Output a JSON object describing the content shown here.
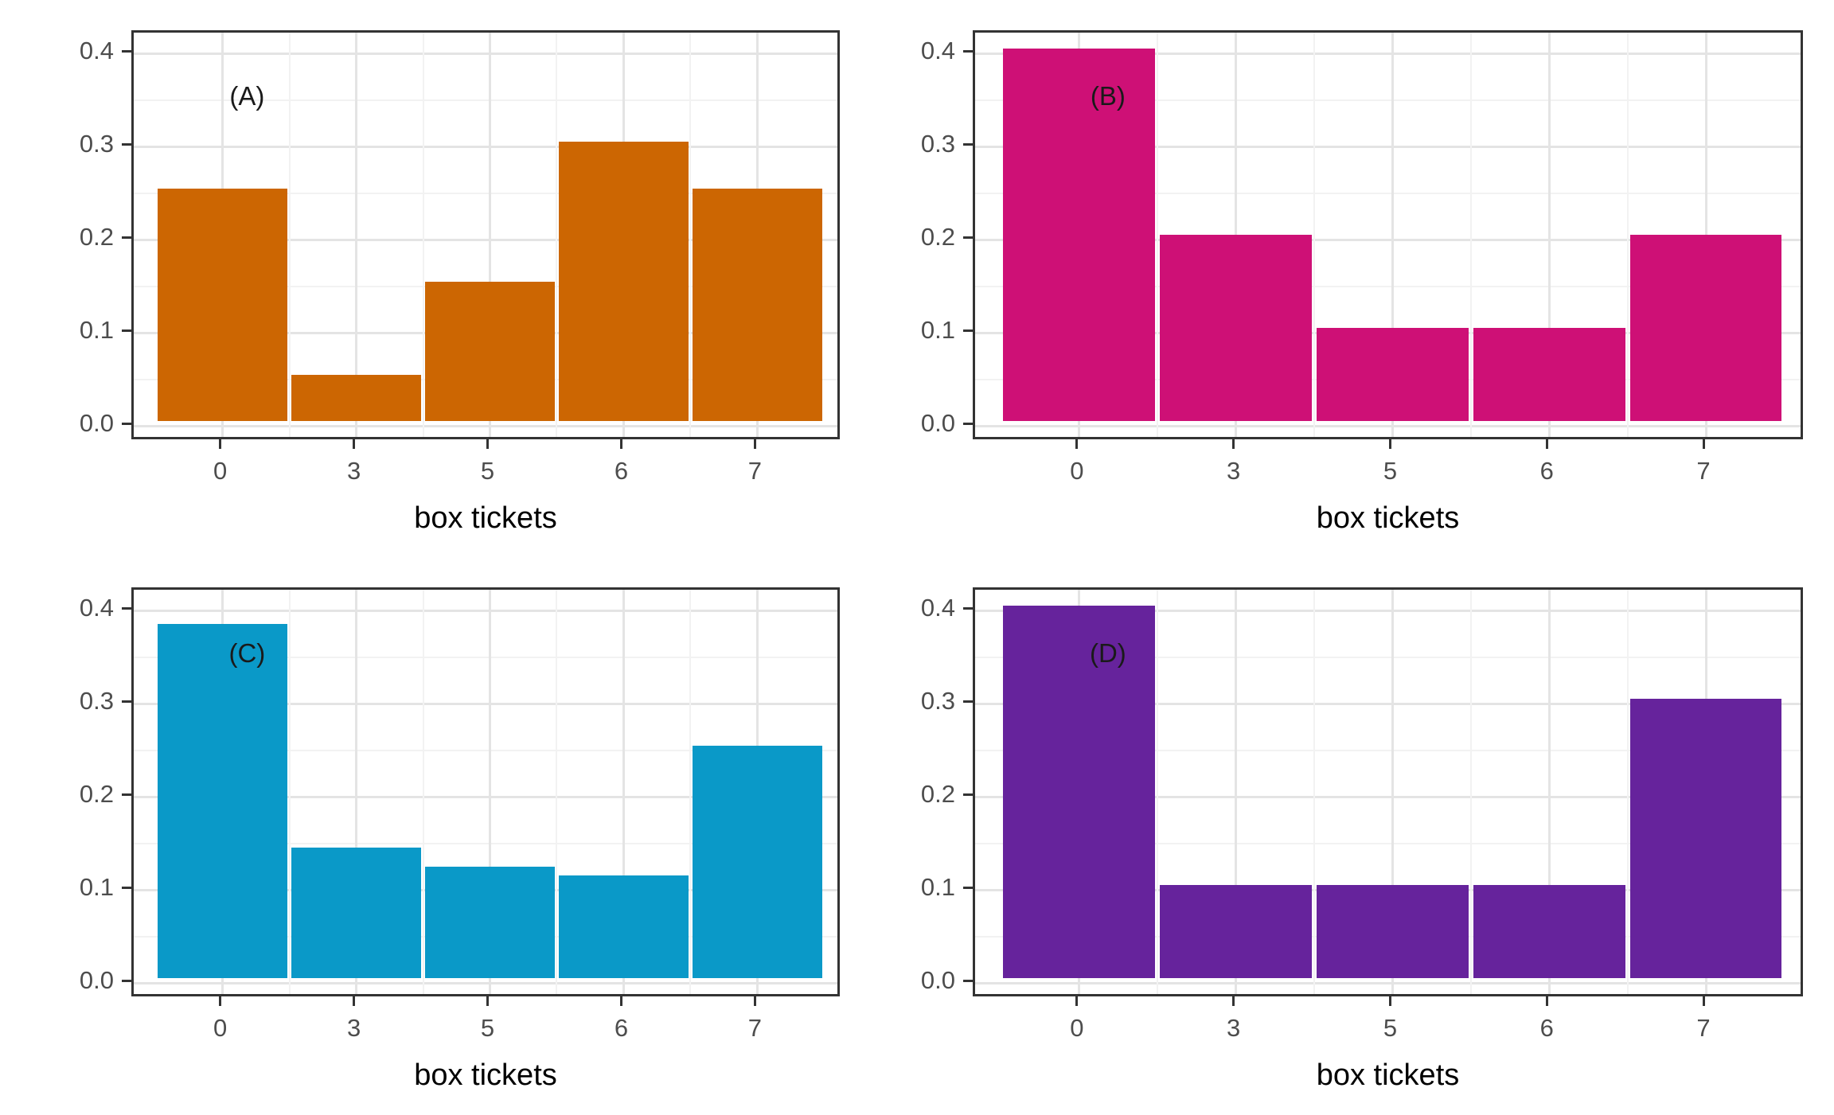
{
  "figure": {
    "background_color": "#ffffff",
    "panel_border_color": "#333333",
    "major_grid_color": "#e4e4e4",
    "minor_grid_color": "#f2f2f2",
    "axis_text_color": "#4d4d4d",
    "axis_title_color": "#000000"
  },
  "chart_data": [
    {
      "type": "bar",
      "panel_label": "(A)",
      "categories": [
        "0",
        "3",
        "5",
        "6",
        "7"
      ],
      "values": [
        0.25,
        0.05,
        0.15,
        0.3,
        0.25
      ],
      "bar_color": "#cc6602",
      "xlabel": "box tickets",
      "ylabel": "",
      "ylim": [
        0,
        0.42
      ],
      "yticks": [
        "0.0",
        "0.1",
        "0.2",
        "0.3",
        "0.4"
      ],
      "grid": "on",
      "legend": "none"
    },
    {
      "type": "bar",
      "panel_label": "(B)",
      "categories": [
        "0",
        "3",
        "5",
        "6",
        "7"
      ],
      "values": [
        0.4,
        0.2,
        0.1,
        0.1,
        0.2
      ],
      "bar_color": "#ce1076",
      "xlabel": "box tickets",
      "ylabel": "",
      "ylim": [
        0,
        0.42
      ],
      "yticks": [
        "0.0",
        "0.1",
        "0.2",
        "0.3",
        "0.4"
      ],
      "grid": "on",
      "legend": "none"
    },
    {
      "type": "bar",
      "panel_label": "(C)",
      "categories": [
        "0",
        "3",
        "5",
        "6",
        "7"
      ],
      "values": [
        0.38,
        0.14,
        0.12,
        0.11,
        0.25
      ],
      "bar_color": "#0a99c8",
      "xlabel": "box tickets",
      "ylabel": "",
      "ylim": [
        0,
        0.42
      ],
      "yticks": [
        "0.0",
        "0.1",
        "0.2",
        "0.3",
        "0.4"
      ],
      "grid": "on",
      "legend": "none"
    },
    {
      "type": "bar",
      "panel_label": "(D)",
      "categories": [
        "0",
        "3",
        "5",
        "6",
        "7"
      ],
      "values": [
        0.4,
        0.1,
        0.1,
        0.1,
        0.3
      ],
      "bar_color": "#66239c",
      "xlabel": "box tickets",
      "ylabel": "",
      "ylim": [
        0,
        0.42
      ],
      "yticks": [
        "0.0",
        "0.1",
        "0.2",
        "0.3",
        "0.4"
      ],
      "grid": "on",
      "legend": "none"
    }
  ]
}
